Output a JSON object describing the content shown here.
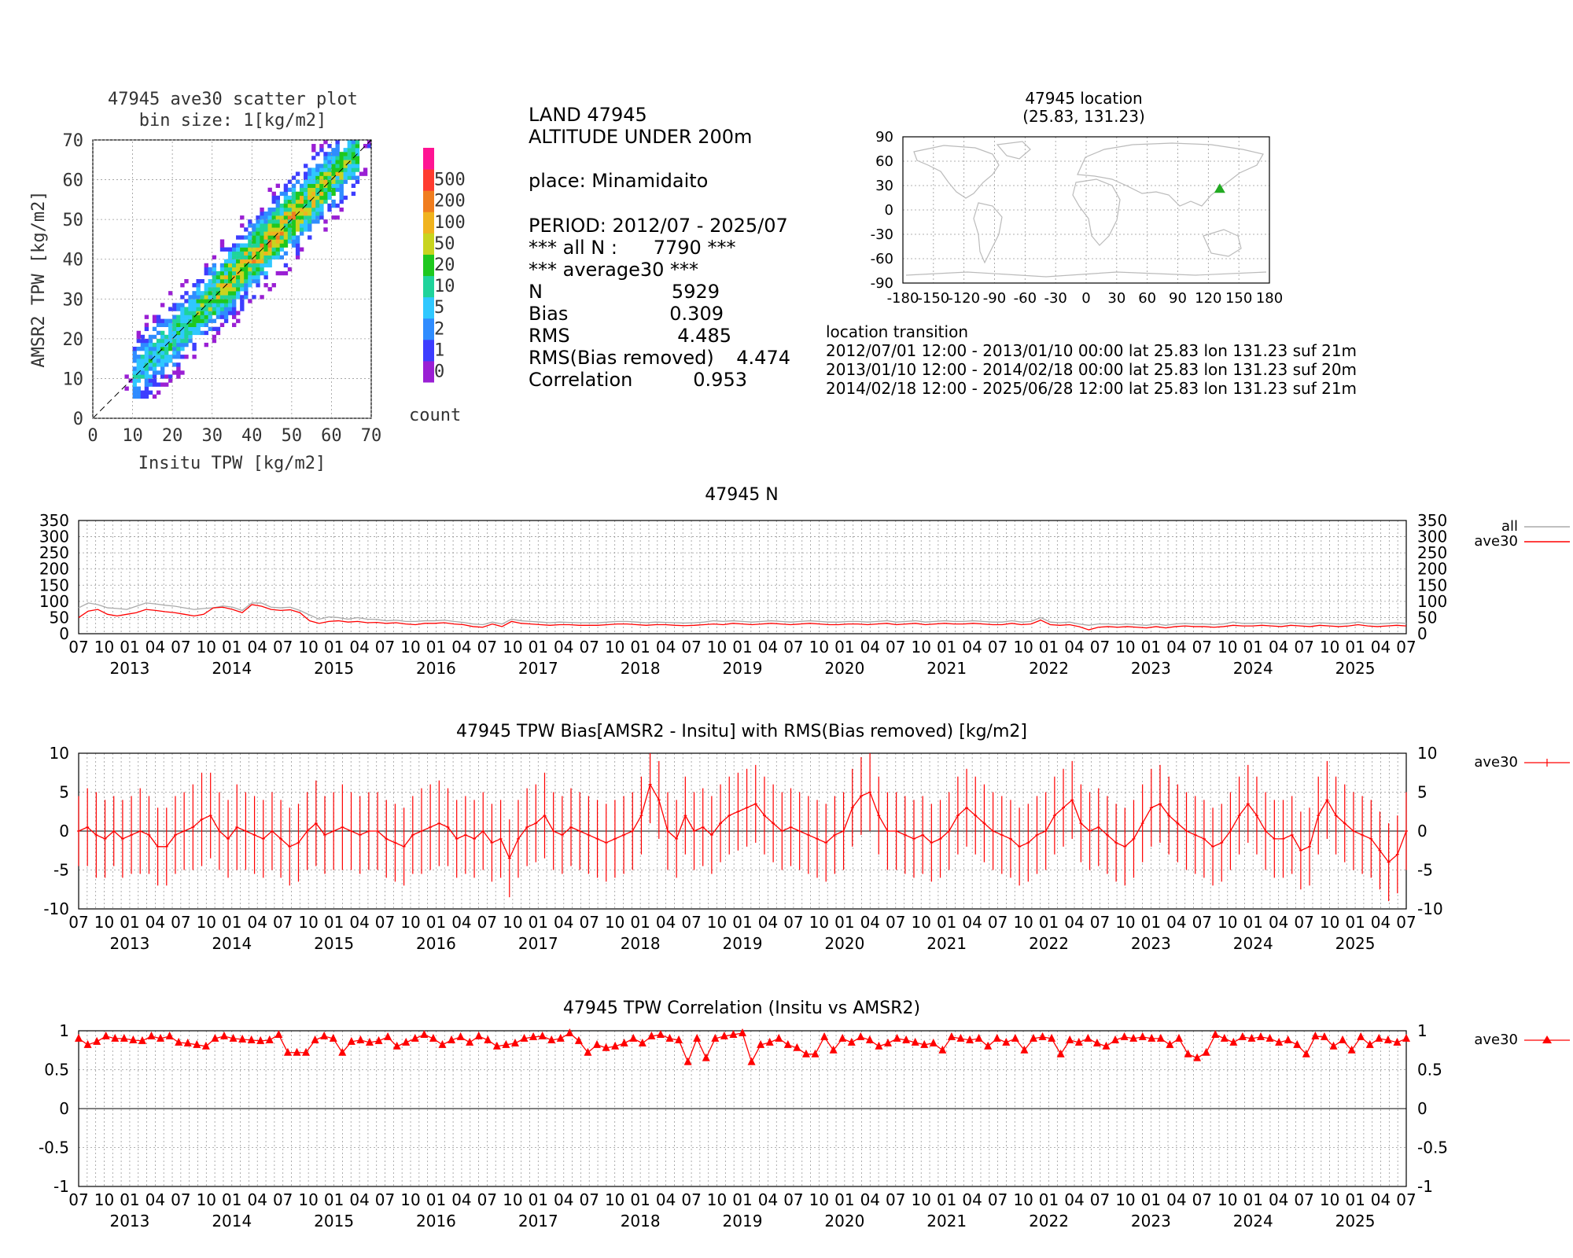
{
  "scatter": {
    "title_line1": "47945 ave30 scatter plot",
    "title_line2": "bin size: 1[kg/m2]",
    "xlabel": "Insitu TPW [kg/m2]",
    "ylabel": "AMSR2 TPW [kg/m2]",
    "ticks": [
      "0",
      "10",
      "20",
      "30",
      "40",
      "50",
      "60",
      "70"
    ],
    "colorbar_labels": [
      "0",
      "1",
      "2",
      "5",
      "10",
      "20",
      "50",
      "100",
      "200",
      "500"
    ],
    "colorbar_colors": [
      "#9a1fd4",
      "#3d3dff",
      "#2f8cff",
      "#2fc8ff",
      "#1fd39b",
      "#1ec81e",
      "#c8d41e",
      "#f0b31e",
      "#f07d1e",
      "#ff3b2f",
      "#ff1493"
    ],
    "colorbar_title": "count"
  },
  "info": {
    "line1": "LAND 47945",
    "line2": "ALTITUDE UNDER 200m",
    "place": "place: Minamidaito",
    "period": "PERIOD: 2012/07 - 2025/07",
    "all_n": "*** all N :      7790 ***",
    "avg_header": "*** average30 ***",
    "stats": [
      {
        "label": "N",
        "value": "5929"
      },
      {
        "label": "Bias",
        "value": "0.309"
      },
      {
        "label": "RMS",
        "value": "4.485"
      },
      {
        "label": "RMS(Bias removed)",
        "value": "4.474"
      },
      {
        "label": "Correlation",
        "value": "0.953"
      }
    ]
  },
  "map": {
    "title_line1": "47945 location",
    "title_line2": "(25.83, 131.23)",
    "lat": 25.83,
    "lon": 131.23,
    "yticks": [
      "90",
      "60",
      "30",
      "0",
      "-30",
      "-60",
      "-90"
    ],
    "xticks": [
      "-180",
      "-150",
      "-120",
      "-90",
      "-60",
      "-30",
      "0",
      "30",
      "60",
      "90",
      "120",
      "150",
      "180"
    ],
    "marker_color": "#22aa22"
  },
  "transition": {
    "header": "location transition",
    "lines": [
      "2012/07/01 12:00 - 2013/01/10 00:00 lat 25.83 lon 131.23 suf 21m",
      "2013/01/10 12:00 - 2014/02/18 00:00 lat 25.83 lon 131.23 suf 20m",
      "2014/02/18 12:00 - 2025/06/28 12:00 lat 25.83 lon 131.23 suf 21m"
    ]
  },
  "timeaxis": {
    "month_labels": [
      "07",
      "10",
      "01",
      "04"
    ],
    "years": [
      "2013",
      "2014",
      "2015",
      "2016",
      "2017",
      "2018",
      "2019",
      "2020",
      "2021",
      "2022",
      "2023",
      "2024",
      "2025"
    ]
  },
  "panels": [
    {
      "title": "47945 N",
      "yticks": [
        "350",
        "300",
        "250",
        "200",
        "150",
        "100",
        "50",
        "0"
      ],
      "ylim": [
        0,
        350
      ]
    },
    {
      "title": "47945 TPW Bias[AMSR2 - Insitu] with RMS(Bias removed) [kg/m2]",
      "yticks": [
        "10",
        "5",
        "0",
        "-5",
        "-10"
      ],
      "ylim": [
        -10,
        10
      ]
    },
    {
      "title": "47945 TPW Correlation (Insitu vs AMSR2)",
      "yticks": [
        "1",
        "0.5",
        "0",
        "-0.5",
        "-1"
      ],
      "ylim": [
        -1,
        1
      ]
    }
  ],
  "chart_data": [
    {
      "type": "scatter",
      "title": "47945 ave30 scatter plot",
      "subtitle": "bin size: 1[kg/m2]",
      "xlabel": "Insitu TPW [kg/m2]",
      "ylabel": "AMSR2 TPW [kg/m2]",
      "xlim": [
        0,
        70
      ],
      "ylim": [
        0,
        70
      ],
      "bias": 0.309,
      "spread": 4.474,
      "correlation": 0.953,
      "n": 5929
    },
    {
      "type": "line",
      "title": "47945 N",
      "xlim": [
        "2012-07",
        "2025-07"
      ],
      "ylim": [
        0,
        350
      ],
      "series": [
        {
          "name": "all",
          "color": "#aaaaaa",
          "values": [
            80,
            95,
            90,
            80,
            78,
            75,
            85,
            95,
            92,
            88,
            85,
            80,
            75,
            78,
            80,
            86,
            82,
            72,
            95,
            95,
            82,
            80,
            82,
            72,
            58,
            45,
            52,
            50,
            45,
            50,
            45,
            44,
            40,
            42,
            38,
            38,
            40,
            40,
            42,
            38,
            35,
            30,
            28,
            36,
            30,
            45,
            40,
            38,
            36,
            34,
            36,
            35,
            34,
            34,
            34,
            36,
            38,
            38,
            36,
            34,
            36,
            35,
            34,
            33,
            34,
            36,
            40,
            38,
            40,
            38,
            36,
            38,
            40,
            38,
            36,
            38,
            40,
            38,
            36,
            36,
            38,
            38,
            36,
            38,
            40,
            36,
            38,
            40,
            36,
            38,
            40,
            38,
            38,
            40,
            38,
            36,
            36,
            40,
            36,
            38,
            50,
            36,
            34,
            36,
            30,
            26,
            30,
            30,
            28,
            30,
            28,
            26,
            30,
            26,
            30,
            32,
            30,
            30,
            28,
            30,
            36,
            32,
            32,
            34,
            32,
            30,
            34,
            32,
            30,
            34,
            32,
            30,
            32,
            36,
            32,
            30,
            32,
            34,
            32
          ]
        },
        {
          "name": "ave30",
          "color": "#ff0000",
          "values": [
            50,
            70,
            75,
            60,
            55,
            60,
            65,
            75,
            72,
            68,
            65,
            60,
            55,
            60,
            80,
            82,
            75,
            65,
            90,
            85,
            75,
            72,
            74,
            65,
            40,
            32,
            38,
            40,
            36,
            38,
            34,
            35,
            32,
            34,
            30,
            28,
            32,
            32,
            34,
            30,
            28,
            22,
            20,
            30,
            22,
            38,
            32,
            30,
            28,
            26,
            28,
            28,
            26,
            26,
            26,
            28,
            30,
            30,
            28,
            26,
            28,
            28,
            26,
            25,
            26,
            28,
            30,
            28,
            32,
            30,
            28,
            30,
            32,
            30,
            28,
            30,
            32,
            30,
            28,
            28,
            30,
            30,
            28,
            30,
            32,
            28,
            30,
            32,
            28,
            30,
            32,
            30,
            30,
            32,
            30,
            28,
            28,
            32,
            28,
            30,
            42,
            28,
            26,
            28,
            22,
            12,
            20,
            22,
            20,
            22,
            20,
            18,
            22,
            18,
            22,
            24,
            22,
            22,
            20,
            22,
            26,
            24,
            24,
            26,
            24,
            22,
            26,
            24,
            22,
            26,
            24,
            22,
            24,
            28,
            24,
            22,
            24,
            26,
            24
          ]
        }
      ]
    },
    {
      "type": "line",
      "title": "47945 TPW Bias[AMSR2 - Insitu] with RMS(Bias removed) [kg/m2]",
      "xlim": [
        "2012-07",
        "2025-07"
      ],
      "ylim": [
        -10,
        10
      ],
      "series": [
        {
          "name": "ave30",
          "color": "#ff0000",
          "values": [
            0,
            0.5,
            -0.5,
            -1,
            0,
            -1,
            -0.5,
            0,
            -0.5,
            -2,
            -2,
            -0.5,
            0,
            0.5,
            1.5,
            2,
            0,
            -1,
            0.5,
            0,
            -0.5,
            -1,
            0,
            -1,
            -2,
            -1.5,
            0,
            1,
            -0.5,
            0,
            0.5,
            0,
            -0.5,
            0,
            0,
            -1,
            -1.5,
            -2,
            -0.5,
            0,
            0.5,
            1,
            0.5,
            -1,
            -0.5,
            -1,
            0,
            -1.5,
            -1,
            -3.5,
            -1,
            0.5,
            1,
            2,
            0,
            -0.5,
            0.5,
            0,
            -0.5,
            -1,
            -1.5,
            -1,
            -0.5,
            0,
            2,
            6,
            4,
            0,
            -1,
            2,
            0,
            0.5,
            -0.5,
            1,
            2,
            2.5,
            3,
            3.5,
            2,
            1,
            0,
            0.5,
            0,
            -0.5,
            -1,
            -1.5,
            -0.5,
            0,
            3,
            4.5,
            5,
            2,
            0,
            0,
            -0.5,
            -1,
            -0.5,
            -1.5,
            -1,
            0,
            2,
            3,
            2,
            1,
            0,
            -0.5,
            -1,
            -2,
            -1.5,
            -0.5,
            0,
            2,
            3,
            4,
            1,
            0,
            0.5,
            -0.5,
            -1.5,
            -2,
            -1,
            1,
            3,
            3.5,
            2,
            1,
            0,
            -0.5,
            -1,
            -2,
            -1.5,
            0,
            2,
            3.5,
            2,
            0,
            -1,
            -1,
            -0.5,
            -2.5,
            -2,
            2,
            4,
            2,
            1,
            0,
            -0.5,
            -1,
            -2.5,
            -4,
            -3,
            0
          ]
        },
        {
          "name": "rms",
          "values": [
            4.5,
            5,
            5.5,
            5,
            4.5,
            5,
            5,
            5.5,
            5,
            5,
            5,
            5,
            5,
            5.5,
            6,
            5.5,
            5,
            5,
            5.5,
            5,
            5,
            5,
            5,
            5,
            5,
            5,
            5,
            5.5,
            5,
            5,
            5.5,
            5,
            5,
            5,
            5,
            5,
            5,
            5,
            5,
            5.5,
            5.5,
            5.5,
            5,
            5,
            5,
            5,
            5,
            5,
            5,
            5,
            5,
            5,
            5,
            5.5,
            5,
            5,
            5,
            5,
            5,
            5,
            5,
            5,
            5,
            5,
            5,
            5,
            5,
            5,
            5,
            5,
            5,
            5,
            5,
            5,
            5,
            5,
            5,
            5,
            5,
            5,
            5,
            5,
            5,
            5,
            5,
            5,
            5,
            5,
            5,
            5,
            5,
            5,
            5,
            5,
            5,
            5,
            5,
            5,
            5,
            5,
            5,
            5,
            5,
            5,
            5,
            5,
            5,
            5,
            5,
            5,
            5,
            5,
            5,
            5,
            5,
            5,
            5,
            5,
            5,
            5,
            5,
            5,
            5,
            5,
            5,
            5,
            5,
            5,
            5,
            5,
            5,
            5,
            5,
            5,
            5,
            5,
            5,
            5,
            5,
            5,
            5,
            5,
            5,
            5,
            5,
            5,
            5,
            5,
            5,
            5,
            5,
            5
          ]
        }
      ]
    },
    {
      "type": "line",
      "title": "47945 TPW Correlation (Insitu vs AMSR2)",
      "xlim": [
        "2012-07",
        "2025-07"
      ],
      "ylim": [
        -1,
        1
      ],
      "series": [
        {
          "name": "ave30",
          "color": "#ff0000",
          "marker": "triangle",
          "values": [
            0.9,
            0.82,
            0.86,
            0.93,
            0.9,
            0.9,
            0.88,
            0.87,
            0.93,
            0.9,
            0.93,
            0.85,
            0.84,
            0.82,
            0.8,
            0.9,
            0.93,
            0.9,
            0.89,
            0.88,
            0.87,
            0.88,
            0.95,
            0.72,
            0.72,
            0.72,
            0.88,
            0.93,
            0.9,
            0.72,
            0.86,
            0.88,
            0.85,
            0.87,
            0.92,
            0.8,
            0.85,
            0.9,
            0.95,
            0.9,
            0.82,
            0.88,
            0.92,
            0.85,
            0.93,
            0.88,
            0.8,
            0.82,
            0.84,
            0.9,
            0.92,
            0.93,
            0.88,
            0.9,
            0.97,
            0.87,
            0.72,
            0.82,
            0.78,
            0.8,
            0.84,
            0.9,
            0.84,
            0.93,
            0.95,
            0.9,
            0.88,
            0.6,
            0.9,
            0.65,
            0.9,
            0.93,
            0.95,
            0.97,
            0.6,
            0.82,
            0.85,
            0.9,
            0.82,
            0.78,
            0.7,
            0.7,
            0.92,
            0.75,
            0.9,
            0.85,
            0.92,
            0.88,
            0.8,
            0.84,
            0.9,
            0.88,
            0.85,
            0.82,
            0.84,
            0.75,
            0.92,
            0.9,
            0.88,
            0.9,
            0.8,
            0.9,
            0.85,
            0.9,
            0.75,
            0.9,
            0.92,
            0.9,
            0.7,
            0.88,
            0.85,
            0.9,
            0.84,
            0.8,
            0.88,
            0.92,
            0.9,
            0.92,
            0.9,
            0.9,
            0.82,
            0.9,
            0.7,
            0.65,
            0.72,
            0.95,
            0.9,
            0.85,
            0.92,
            0.9,
            0.92,
            0.9,
            0.85,
            0.88,
            0.82,
            0.7,
            0.93,
            0.92,
            0.8,
            0.88,
            0.75,
            0.92,
            0.82,
            0.9,
            0.88,
            0.85,
            0.9
          ]
        }
      ]
    }
  ]
}
